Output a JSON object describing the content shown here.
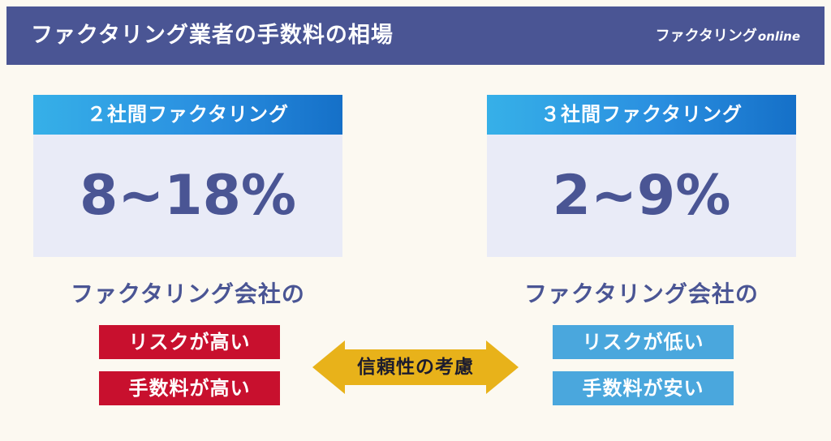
{
  "header": {
    "title": "ファクタリング業者の手数料の相場",
    "brand_main": "ファクタリング",
    "brand_sub": "online"
  },
  "left": {
    "heading": "２社間ファクタリング",
    "value": "8~18%",
    "subtitle": "ファクタリング会社の",
    "tag1": "リスクが高い",
    "tag2": "手数料が高い"
  },
  "right": {
    "heading": "３社間ファクタリング",
    "value": "2~9%",
    "subtitle": "ファクタリング会社の",
    "tag1": "リスクが低い",
    "tag2": "手数料が安い"
  },
  "middle": {
    "label": "信頼性の考慮"
  },
  "colors": {
    "navy": "#4a5594",
    "red_tag": "#c8102e",
    "blue_tag": "#4aa7dd",
    "arrow": "#e8b21a"
  }
}
